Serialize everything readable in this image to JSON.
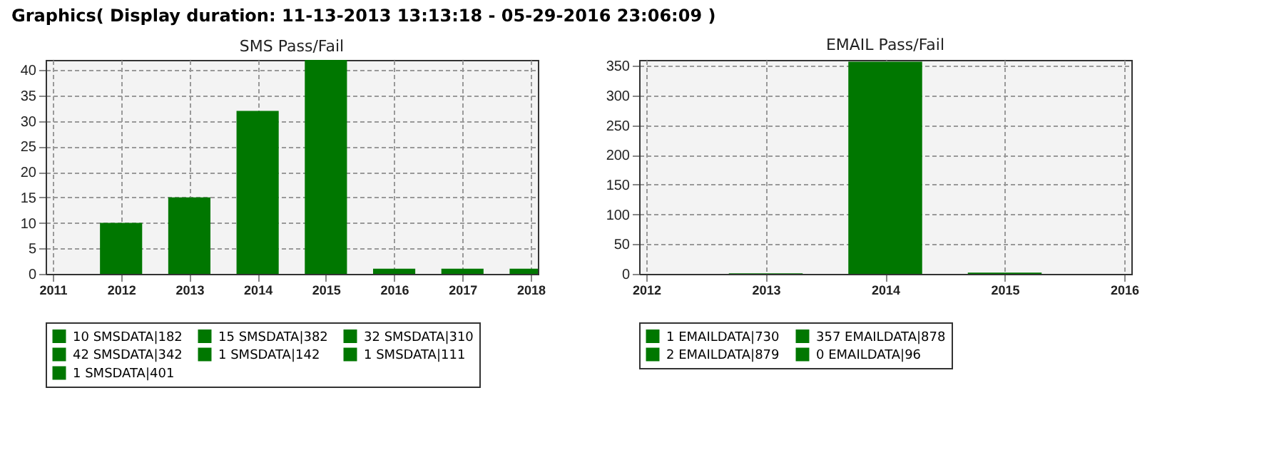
{
  "chart_data": [
    {
      "type": "bar",
      "title": "SMS Pass/Fail",
      "annotations": [
        "Graphics( Display duration: 11-13-2013 13:13:18 - 05-29-2016 23:06:09 )"
      ],
      "xlim": [
        2011,
        2018
      ],
      "xticks": [
        2011,
        2012,
        2013,
        2014,
        2015,
        2016,
        2017,
        2018
      ],
      "ylim": [
        0,
        42
      ],
      "yticks": [
        0,
        5,
        10,
        15,
        20,
        25,
        30,
        35,
        40
      ],
      "grid": true,
      "legend": "bottom",
      "series": [
        {
          "name": "10 SMSDATA|182",
          "color": "#007700",
          "x": [
            2012
          ],
          "values": [
            10
          ]
        },
        {
          "name": "15 SMSDATA|382",
          "color": "#007700",
          "x": [
            2013
          ],
          "values": [
            15
          ]
        },
        {
          "name": "32 SMSDATA|310",
          "color": "#007700",
          "x": [
            2014
          ],
          "values": [
            32
          ]
        },
        {
          "name": "42 SMSDATA|342",
          "color": "#007700",
          "x": [
            2015
          ],
          "values": [
            42
          ]
        },
        {
          "name": "1 SMSDATA|142",
          "color": "#007700",
          "x": [
            2016
          ],
          "values": [
            1
          ]
        },
        {
          "name": "1 SMSDATA|111",
          "color": "#007700",
          "x": [
            2017
          ],
          "values": [
            1
          ]
        },
        {
          "name": "1 SMSDATA|401",
          "color": "#007700",
          "x": [
            2018
          ],
          "values": [
            1
          ]
        }
      ]
    },
    {
      "type": "bar",
      "title": "EMAIL Pass/Fail",
      "xlim": [
        2012,
        2016
      ],
      "xticks": [
        2012,
        2013,
        2014,
        2015,
        2016
      ],
      "ylim": [
        0,
        360
      ],
      "yticks": [
        0,
        50,
        100,
        150,
        200,
        250,
        300,
        350
      ],
      "grid": true,
      "legend": "bottom",
      "series": [
        {
          "name": "1 EMAILDATA|730",
          "color": "#007700",
          "x": [
            2013
          ],
          "values": [
            1
          ]
        },
        {
          "name": "357 EMAILDATA|878",
          "color": "#007700",
          "x": [
            2014
          ],
          "values": [
            357
          ]
        },
        {
          "name": "2 EMAILDATA|879",
          "color": "#007700",
          "x": [
            2015
          ],
          "values": [
            2
          ]
        },
        {
          "name": "0 EMAILDATA|96",
          "color": "#007700",
          "x": [
            2016
          ],
          "values": [
            0
          ]
        }
      ]
    }
  ]
}
